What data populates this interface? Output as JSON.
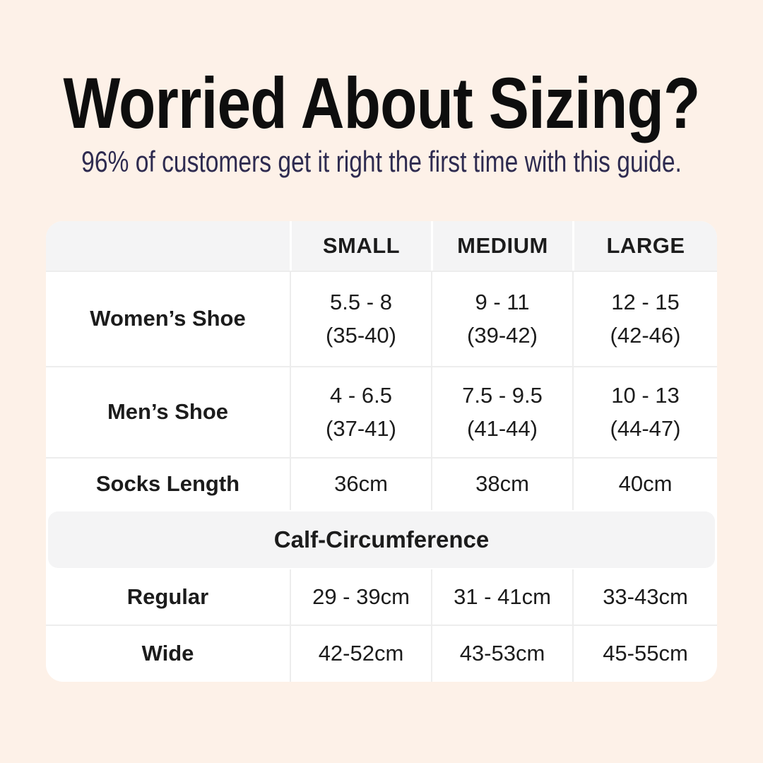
{
  "poster": {
    "title": "Worried About Sizing?",
    "subtitle": "96% of customers get it right the first time with this guide."
  },
  "colors": {
    "page_bg": "#fdf1e8",
    "table_bg": "#ffffff",
    "band_bg": "#f4f4f5",
    "divider": "#ededed",
    "title_text": "#0e0e0e",
    "subtitle_text": "#2e2b50",
    "body_text": "#1c1c1c"
  },
  "table": {
    "column_headers": [
      "SMALL",
      "MEDIUM",
      "LARGE"
    ],
    "shoe_rows": [
      {
        "label": "Women’s Shoe",
        "small": [
          "5.5 - 8",
          "(35-40)"
        ],
        "medium": [
          "9 - 11",
          "(39-42)"
        ],
        "large": [
          "12 - 15",
          "(42-46)"
        ]
      },
      {
        "label": "Men’s Shoe",
        "small": [
          "4 - 6.5",
          "(37-41)"
        ],
        "medium": [
          "7.5 - 9.5",
          "(41-44)"
        ],
        "large": [
          "10 - 13",
          "(44-47)"
        ]
      }
    ],
    "socks_row": {
      "label": "Socks Length",
      "small": "36cm",
      "medium": "38cm",
      "large": "40cm"
    },
    "calf_section": {
      "title": "Calf-Circumference",
      "rows": [
        {
          "label": "Regular",
          "small": "29 - 39cm",
          "medium": "31 - 41cm",
          "large": "33-43cm"
        },
        {
          "label": "Wide",
          "small": "42-52cm",
          "medium": "43-53cm",
          "large": "45-55cm"
        }
      ]
    }
  }
}
